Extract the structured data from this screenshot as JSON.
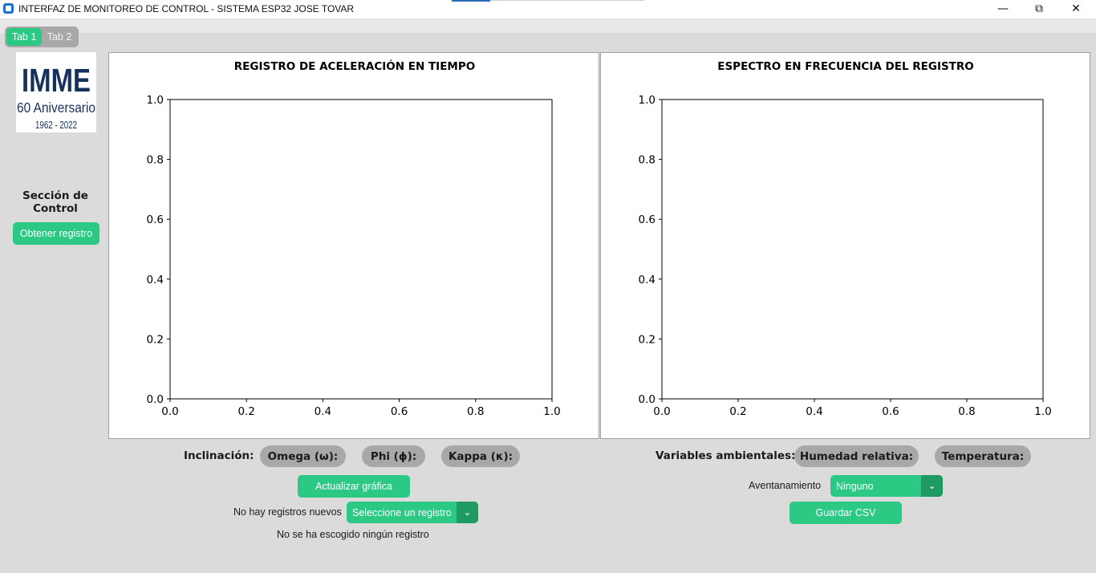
{
  "window": {
    "title": "INTERFAZ DE MONITOREO DE CONTROL - SISTEMA ESP32 JOSE TOVAR",
    "minimize_icon": "minimize-icon",
    "maximize_icon": "restore-icon",
    "close_icon": "close-icon"
  },
  "tabs": [
    {
      "label": "Tab 1",
      "active": true
    },
    {
      "label": "Tab 2",
      "active": false
    }
  ],
  "logo": {
    "line1": "IMME",
    "line2": "60 Aniversario",
    "line3": "1962 - 2022"
  },
  "sidebar": {
    "section_label": "Sección de\nControl",
    "get_record_button": "Obtener registro"
  },
  "charts": {
    "time": {
      "title": "REGISTRO DE ACELERACIÓN EN TIEMPO"
    },
    "freq": {
      "title": "ESPECTRO EN FRECUENCIA DEL REGISTRO"
    }
  },
  "chart_data": [
    {
      "type": "line",
      "title": "REGISTRO DE ACELERACIÓN EN TIEMPO",
      "xlim": [
        0.0,
        1.0
      ],
      "ylim": [
        0.0,
        1.0
      ],
      "xticks": [
        "0.0",
        "0.2",
        "0.4",
        "0.6",
        "0.8",
        "1.0"
      ],
      "yticks": [
        "0.0",
        "0.2",
        "0.4",
        "0.6",
        "0.8",
        "1.0"
      ],
      "series": [],
      "grid": false
    },
    {
      "type": "line",
      "title": "ESPECTRO EN FRECUENCIA DEL REGISTRO",
      "xlim": [
        0.0,
        1.0
      ],
      "ylim": [
        0.0,
        1.0
      ],
      "xticks": [
        "0.0",
        "0.2",
        "0.4",
        "0.6",
        "0.8",
        "1.0"
      ],
      "yticks": [
        "0.0",
        "0.2",
        "0.4",
        "0.6",
        "0.8",
        "1.0"
      ],
      "series": [],
      "grid": false
    }
  ],
  "inclination": {
    "label": "Inclinación:",
    "omega": "Omega (ω):",
    "phi": "Phi (ϕ):",
    "kappa": "Kappa (κ):"
  },
  "left_controls": {
    "update_button": "Actualizar gráfica",
    "no_new_records": "No hay registros nuevos",
    "record_select_value": "Seleccione un registro",
    "status_text": "No se ha escogido ningún registro"
  },
  "ambient": {
    "label": "Variables ambientales:",
    "humidity": "Humedad relativa:",
    "temperature": "Temperatura:"
  },
  "right_controls": {
    "windowing_label": "Aventanamiento",
    "windowing_value": "Ninguno",
    "save_csv_button": "Guardar CSV"
  },
  "colors": {
    "accent": "#2cc985",
    "accent_dark": "#1f9a62",
    "pill": "#a8a8a8",
    "background": "#dbdbdb"
  }
}
